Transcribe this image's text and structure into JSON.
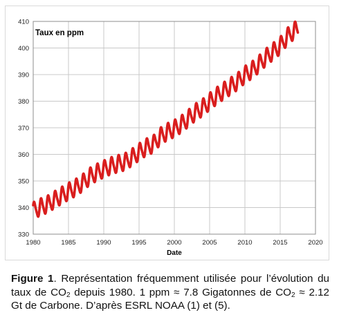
{
  "chart_data": {
    "type": "line",
    "title": "Taux en ppm",
    "xlabel": "Date",
    "ylabel": "",
    "xlim": [
      1980,
      2020
    ],
    "ylim": [
      330,
      410
    ],
    "xticks": [
      "1980",
      "1985",
      "1990",
      "1995",
      "2000",
      "2005",
      "2010",
      "2015",
      "2020"
    ],
    "yticks": [
      "330",
      "340",
      "350",
      "360",
      "370",
      "380",
      "390",
      "400",
      "410"
    ],
    "grid": true,
    "series": [
      {
        "color": "#d91e1e",
        "x": [
          1980,
          1981,
          1982,
          1983,
          1984,
          1985,
          1986,
          1987,
          1988,
          1989,
          1990,
          1991,
          1992,
          1993,
          1994,
          1995,
          1996,
          1997,
          1998,
          1999,
          2000,
          2001,
          2002,
          2003,
          2004,
          2005,
          2006,
          2007,
          2008,
          2009,
          2010,
          2011,
          2012,
          2013,
          2014,
          2015,
          2016,
          2017,
          2017.5
        ],
        "y": [
          338.7,
          340.1,
          341.1,
          342.8,
          344.4,
          346.0,
          347.4,
          349.2,
          351.6,
          353.1,
          354.4,
          355.6,
          356.4,
          357.1,
          358.8,
          360.8,
          362.6,
          363.7,
          366.7,
          368.4,
          369.6,
          371.3,
          373.5,
          375.8,
          377.5,
          379.8,
          381.9,
          383.8,
          385.6,
          387.4,
          389.9,
          391.6,
          393.9,
          396.5,
          398.6,
          400.8,
          404.2,
          406.5,
          407.0
        ]
      }
    ]
  },
  "caption": {
    "bold": "Figure 1",
    "part1": ". Représentation fréquemment utilisée pour l’évolution du taux de CO",
    "sub1": "2",
    "part2": " depuis 1980. 1 ppm ≈ 7.8 Gigatonnes de CO",
    "sub2": "2",
    "part3": " ≈ 2.12 Gt de Carbone. D’après ESRL NOAA (1) et (5)."
  }
}
